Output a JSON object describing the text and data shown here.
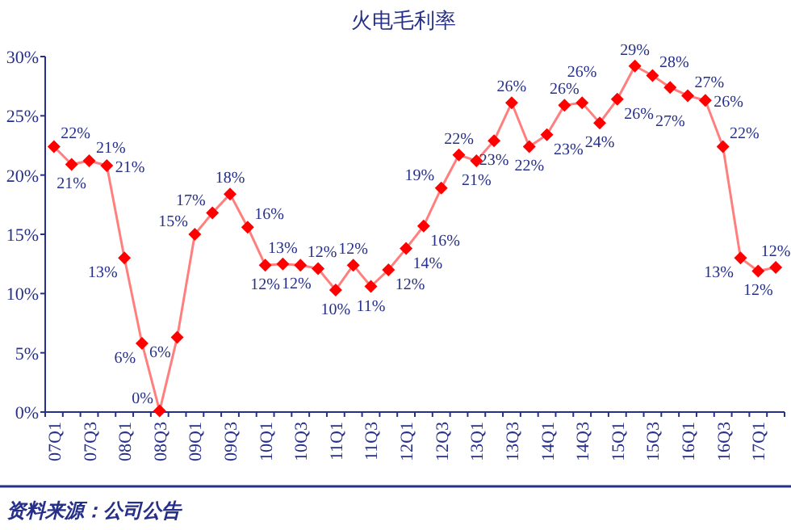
{
  "chart_data": {
    "type": "line",
    "title": "火电毛利率",
    "categories": [
      "07Q1",
      null,
      "07Q3",
      null,
      "08Q1",
      null,
      "08Q3",
      null,
      "09Q1",
      null,
      "09Q3",
      null,
      "10Q1",
      null,
      "10Q3",
      null,
      "11Q1",
      null,
      "11Q3",
      null,
      "12Q1",
      null,
      "12Q3",
      null,
      "13Q1",
      null,
      "13Q3",
      null,
      "14Q1",
      null,
      "14Q3",
      null,
      "15Q1",
      null,
      "15Q3",
      null,
      "16Q1",
      null,
      "16Q3",
      null,
      "17Q1",
      null
    ],
    "series": [
      {
        "color": "#ff0000",
        "values": [
          22.4,
          20.9,
          21.2,
          20.8,
          13.0,
          5.8,
          0.1,
          6.3,
          15.0,
          16.8,
          18.4,
          15.6,
          12.4,
          12.5,
          12.4,
          12.1,
          10.3,
          12.4,
          10.6,
          12.0,
          13.8,
          15.7,
          18.9,
          21.7,
          21.2,
          22.9,
          26.1,
          22.4,
          23.4,
          25.9,
          26.1,
          24.4,
          26.4,
          29.2,
          28.4,
          27.4,
          26.7,
          26.3,
          22.4,
          13.0,
          11.9,
          12.2
        ],
        "value_labels": [
          "22%",
          "21%",
          "21%",
          "21%",
          "13%",
          "6%",
          "0%",
          "6%",
          "15%",
          "17%",
          "18%",
          "16%",
          "12%",
          "13%",
          "12%",
          "12%",
          "10%",
          "12%",
          "11%",
          "12%",
          "14%",
          "16%",
          "19%",
          "22%",
          "21%",
          "23%",
          "26%",
          "22%",
          "23%",
          "26%",
          "26%",
          "24%",
          "26%",
          "29%",
          "28%",
          "27%",
          "27%",
          "26%",
          "22%",
          "13%",
          "12%",
          "12%"
        ]
      }
    ],
    "ylim": [
      0,
      30
    ],
    "yticks": [
      {
        "value": 0,
        "label": "0%"
      },
      {
        "value": 5,
        "label": "5%"
      },
      {
        "value": 10,
        "label": "10%"
      },
      {
        "value": 15,
        "label": "15%"
      },
      {
        "value": 20,
        "label": "20%"
      },
      {
        "value": 25,
        "label": "25%"
      },
      {
        "value": 30,
        "label": "30%"
      }
    ],
    "marker": "diamond",
    "grid": false,
    "annotations": [
      "资料来源：公司公告"
    ]
  }
}
